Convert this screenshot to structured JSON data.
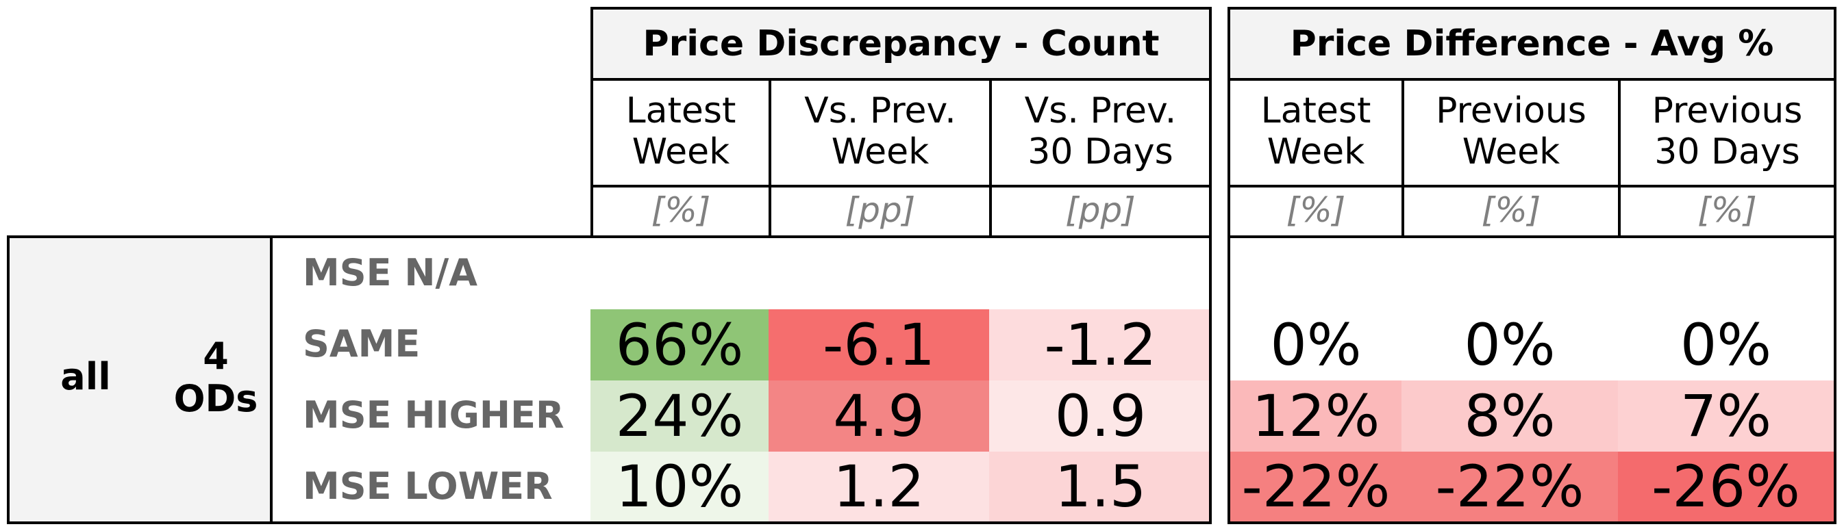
{
  "groups": {
    "count_title": "Price Discrepancy - Count",
    "avg_title": "Price Difference - Avg %"
  },
  "columns": [
    {
      "label": "Latest\nWeek",
      "unit": "[%]"
    },
    {
      "label": "Vs. Prev.\nWeek",
      "unit": "[pp]"
    },
    {
      "label": "Vs. Prev.\n30 Days",
      "unit": "[pp]"
    },
    {
      "label": "Latest\nWeek",
      "unit": "[%]"
    },
    {
      "label": "Previous\nWeek",
      "unit": "[%]"
    },
    {
      "label": "Previous\n30 Days",
      "unit": "[%]"
    }
  ],
  "segment": {
    "name": "all",
    "count_label": "4\nODs"
  },
  "rows": [
    {
      "label": "MSE N/A",
      "values": [
        "",
        "",
        "",
        "",
        "",
        ""
      ]
    },
    {
      "label": "SAME",
      "values": [
        "66%",
        "-6.1",
        "-1.2",
        "0%",
        "0%",
        "0%"
      ]
    },
    {
      "label": "MSE HIGHER",
      "values": [
        "24%",
        "4.9",
        "0.9",
        "12%",
        "8%",
        "7%"
      ]
    },
    {
      "label": "MSE LOWER",
      "values": [
        "10%",
        "1.2",
        "1.5",
        "-22%",
        "-22%",
        "-26%"
      ]
    }
  ],
  "cell_colors": [
    [
      "#ffffff",
      "#ffffff",
      "#ffffff",
      "#ffffff",
      "#ffffff",
      "#ffffff"
    ],
    [
      "#8fc576",
      "#f56e6e",
      "#fddcdd",
      "#ffffff",
      "#ffffff",
      "#ffffff"
    ],
    [
      "#d6e8cc",
      "#f38585",
      "#fde7e7",
      "#fbb9ba",
      "#fccacb",
      "#fdd1d2"
    ],
    [
      "#eef6e9",
      "#fde1e2",
      "#fcd5d6",
      "#f58080",
      "#f58080",
      "#f46b6d"
    ]
  ]
}
